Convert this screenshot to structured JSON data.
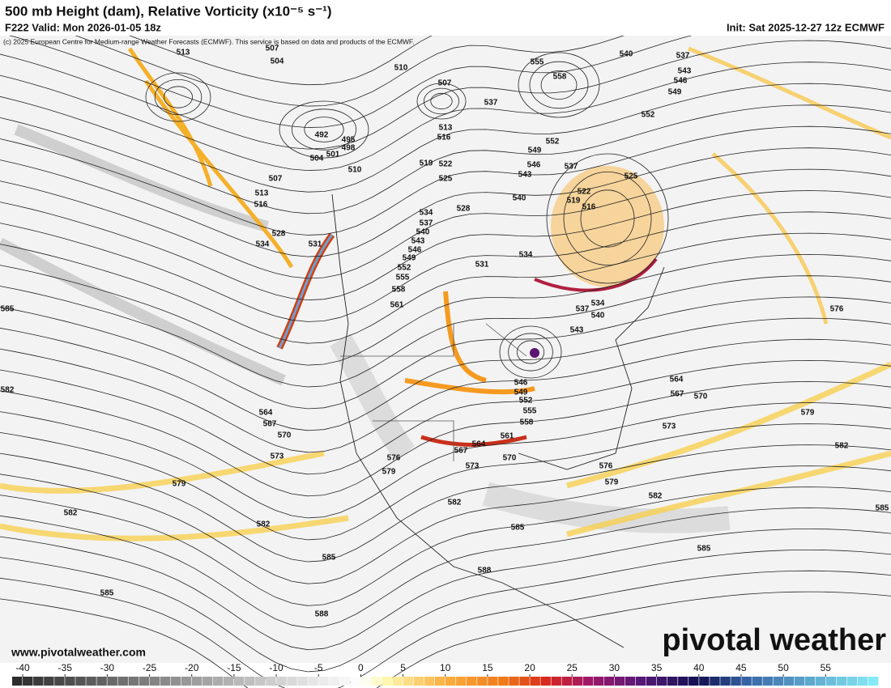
{
  "header": {
    "title": "500 mb Height (dam), Relative Vorticity (x10⁻⁵ s⁻¹)",
    "valid": "F222 Valid: Mon 2026-01-05 18z",
    "init": "Init: Sat 2025-12-27 12z ECMWF",
    "copyright": "(c) 2025 European Centre for Medium-range Weather Forecasts (ECMWF). This service is based on data and products of the ECMWF."
  },
  "map": {
    "contour_labels": [
      513,
      507,
      504,
      510,
      507,
      555,
      540,
      537,
      558,
      543,
      546,
      549,
      552,
      537,
      492,
      495,
      498,
      501,
      504,
      510,
      513,
      516,
      519,
      522,
      525,
      549,
      546,
      543,
      540,
      552,
      537,
      525,
      522,
      519,
      516,
      507,
      513,
      516,
      528,
      534,
      531,
      528,
      531,
      534,
      534,
      537,
      540,
      543,
      546,
      549,
      552,
      555,
      558,
      561,
      537,
      534,
      540,
      543,
      585,
      582,
      576,
      564,
      567,
      570,
      573,
      579,
      582,
      546,
      549,
      552,
      555,
      558,
      561,
      564,
      567,
      570,
      573,
      576,
      579,
      582,
      576,
      579,
      564,
      567,
      570,
      573,
      579,
      582,
      582,
      582,
      585,
      585,
      585,
      585,
      585,
      588,
      588
    ]
  },
  "footer": {
    "url": "www.pivotalweather.com",
    "brand": "pivotal weather"
  },
  "colorbar": {
    "ticks": [
      -40,
      -35,
      -30,
      -25,
      -20,
      -15,
      -10,
      -5,
      0,
      5,
      10,
      15,
      20,
      25,
      30,
      35,
      40,
      45,
      50,
      55
    ],
    "lim": [
      -41.25,
      61.3
    ],
    "stops": [
      {
        "value": -41.25,
        "color": "#2a2a2a"
      },
      {
        "value": -10,
        "color": "#d0d0d0"
      },
      {
        "value": 0,
        "color": "#ffffff"
      },
      {
        "value": 3,
        "color": "#fff7b0"
      },
      {
        "value": 10,
        "color": "#fbb040"
      },
      {
        "value": 17,
        "color": "#f07818"
      },
      {
        "value": 22,
        "color": "#d8281c"
      },
      {
        "value": 27,
        "color": "#a01868"
      },
      {
        "value": 33,
        "color": "#581878"
      },
      {
        "value": 40,
        "color": "#101050"
      },
      {
        "value": 46,
        "color": "#3868a8"
      },
      {
        "value": 61.3,
        "color": "#88f0f8"
      }
    ]
  }
}
